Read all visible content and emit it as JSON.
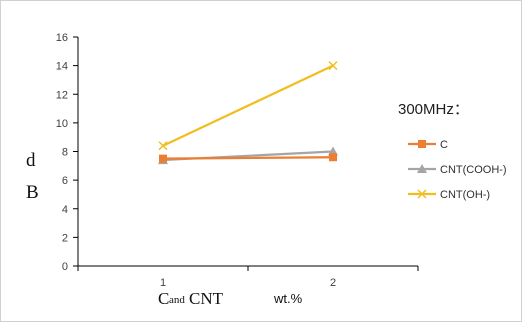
{
  "chart_data": {
    "type": "line",
    "categories": [
      "1",
      "2"
    ],
    "ylim": [
      0,
      16
    ],
    "yticks": [
      0,
      2,
      4,
      6,
      8,
      10,
      12,
      14,
      16
    ],
    "ylabel_top": "d",
    "ylabel_bottom": "B",
    "xlabel_part1": "C",
    "xlabel_part2": "and",
    "xlabel_part3": "CNT",
    "xlabel_part4": "wt.%",
    "legend_title": "300MHz：",
    "legend_position": "right",
    "grid": false,
    "series": [
      {
        "name": "C",
        "values": [
          7.5,
          7.6
        ],
        "color": "#ED7D31",
        "marker": "square"
      },
      {
        "name": "CNT(COOH-)",
        "values": [
          7.4,
          8.0
        ],
        "color": "#A5A5A5",
        "marker": "triangle"
      },
      {
        "name": "CNT(OH-)",
        "values": [
          8.4,
          14.0
        ],
        "color": "#F0BE1E",
        "marker": "x"
      }
    ]
  }
}
